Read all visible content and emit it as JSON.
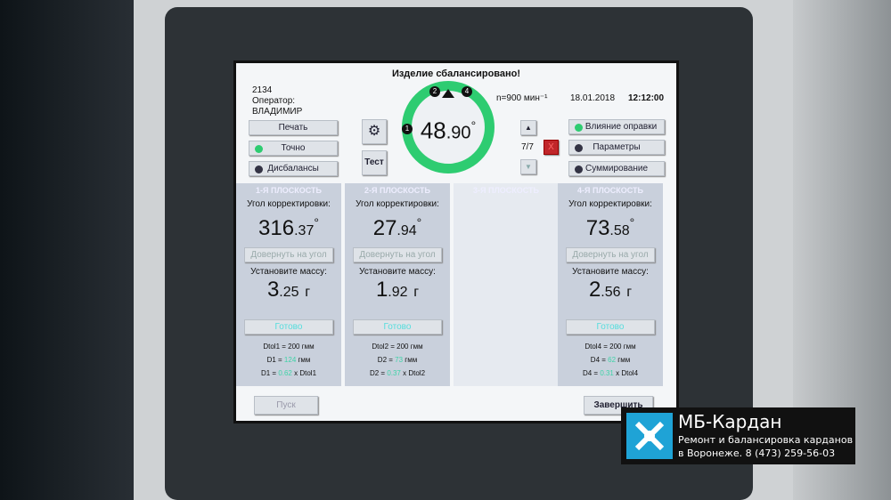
{
  "header": {
    "title": "Изделие сбалансировано!",
    "job": "2134",
    "operator_label": "Оператор:",
    "operator": "ВЛАДИМИР",
    "speed": "n=900 мин⁻¹",
    "date": "18.01.2018",
    "time": "12:12:00"
  },
  "left_buttons": [
    {
      "label": "Печать"
    },
    {
      "label": "Точно",
      "indicator": "#2ecc71"
    },
    {
      "label": "Дисбалансы",
      "indicator": "#333344"
    }
  ],
  "center": {
    "settings_icon": "gear-wrench-icon",
    "test_label": "Тест",
    "angle_main": "48",
    "angle_frac": ".90",
    "degree": "°",
    "markers": [
      "1",
      "2",
      "4"
    ],
    "ring_color": "#2ecc71"
  },
  "nav": {
    "counter": "7/7",
    "close": "X"
  },
  "right_buttons": [
    {
      "label": "Влияние оправки",
      "indicator": "#2ecc71"
    },
    {
      "label": "Параметры",
      "indicator": "#333344"
    },
    {
      "label": "Суммирование",
      "indicator": "#333344"
    }
  ],
  "planes": [
    {
      "title": "1-Я ПЛОСКОСТЬ",
      "angle_label": "Угол корректировки:",
      "angle_int": "316",
      "angle_frac": ".37",
      "rotate": "Довернуть на угол",
      "mass_label": "Установите массу:",
      "mass_int": "3",
      "mass_frac": ".25",
      "unit": "г",
      "ready": "Готово",
      "dtol": "Dtol1 = 200 гмм",
      "d_pre": "D1 = ",
      "d_val": "124",
      "d_unit": " гмм",
      "r_pre": "D1 = ",
      "r_val": "0.62",
      "r_post": " x Dtol1"
    },
    {
      "title": "2-Я ПЛОСКОСТЬ",
      "angle_label": "Угол корректировки:",
      "angle_int": "27",
      "angle_frac": ".94",
      "rotate": "Довернуть на угол",
      "mass_label": "Установите массу:",
      "mass_int": "1",
      "mass_frac": ".92",
      "unit": "г",
      "ready": "Готово",
      "dtol": "Dtol2 = 200 гмм",
      "d_pre": "D2 = ",
      "d_val": "73",
      "d_unit": " гмм",
      "r_pre": "D2 = ",
      "r_val": "0.37",
      "r_post": " x Dtol2"
    },
    {
      "title": "3-Я ПЛОСКОСТЬ"
    },
    {
      "title": "4-Я ПЛОСКОСТЬ",
      "angle_label": "Угол корректировки:",
      "angle_int": "73",
      "angle_frac": ".58",
      "rotate": "Довернуть на угол",
      "mass_label": "Установите массу:",
      "mass_int": "2",
      "mass_frac": ".56",
      "unit": "г",
      "ready": "Готово",
      "dtol": "Dtol4 = 200 гмм",
      "d_pre": "D4 = ",
      "d_val": "62",
      "d_unit": " гмм",
      "r_pre": "D4 = ",
      "r_val": "0.31",
      "r_post": " x Dtol4"
    }
  ],
  "footer": {
    "start": "Пуск",
    "finish": "Завершить"
  },
  "watermark": {
    "brand": "МБ-Кардан",
    "line1": "Ремонт и балансировка карданов",
    "line2": "в Воронеже. 8 (473) 259-56-03"
  }
}
